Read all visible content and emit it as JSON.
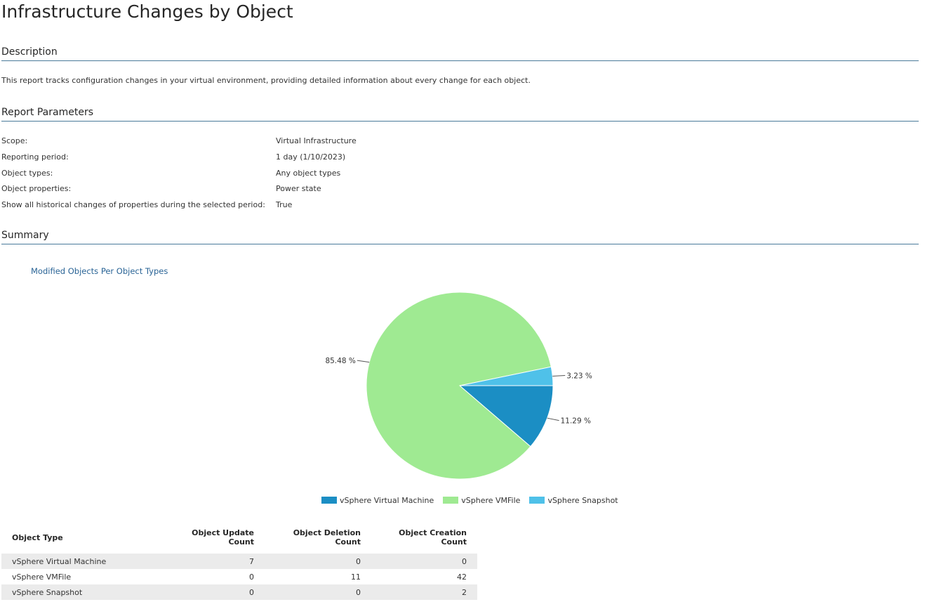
{
  "title": "Infrastructure Changes by Object",
  "description": {
    "heading": "Description",
    "text": "This report tracks configuration changes in your virtual environment, providing detailed information about every change for each object."
  },
  "parameters": {
    "heading": "Report Parameters",
    "rows": [
      {
        "label": "Scope:",
        "value": "Virtual Infrastructure"
      },
      {
        "label": "Reporting period:",
        "value": "1 day (1/10/2023)"
      },
      {
        "label": "Object types:",
        "value": "Any object types"
      },
      {
        "label": "Object properties:",
        "value": "Power state"
      },
      {
        "label": "Show all historical changes of properties during the selected period:",
        "value": "True"
      }
    ]
  },
  "summary": {
    "heading": "Summary",
    "table": {
      "headers": [
        "Object Type",
        "Object Update Count",
        "Object Deletion Count",
        "Object Creation Count"
      ],
      "rows": [
        [
          "vSphere Virtual Machine",
          "7",
          "0",
          "0"
        ],
        [
          "vSphere VMFile",
          "0",
          "11",
          "42"
        ],
        [
          "vSphere Snapshot",
          "0",
          "0",
          "2"
        ]
      ]
    }
  },
  "chart_data": {
    "type": "pie",
    "title": "Modified Objects Per Object Types",
    "categories": [
      "vSphere Virtual Machine",
      "vSphere VMFile",
      "vSphere Snapshot"
    ],
    "values": [
      11.29,
      85.48,
      3.23
    ],
    "value_labels": [
      "11.29 %",
      "85.48 %",
      "3.23 %"
    ],
    "colors": [
      "#1b8ec4",
      "#9fea92",
      "#4fc1e9"
    ],
    "legend": "bottom-center"
  }
}
